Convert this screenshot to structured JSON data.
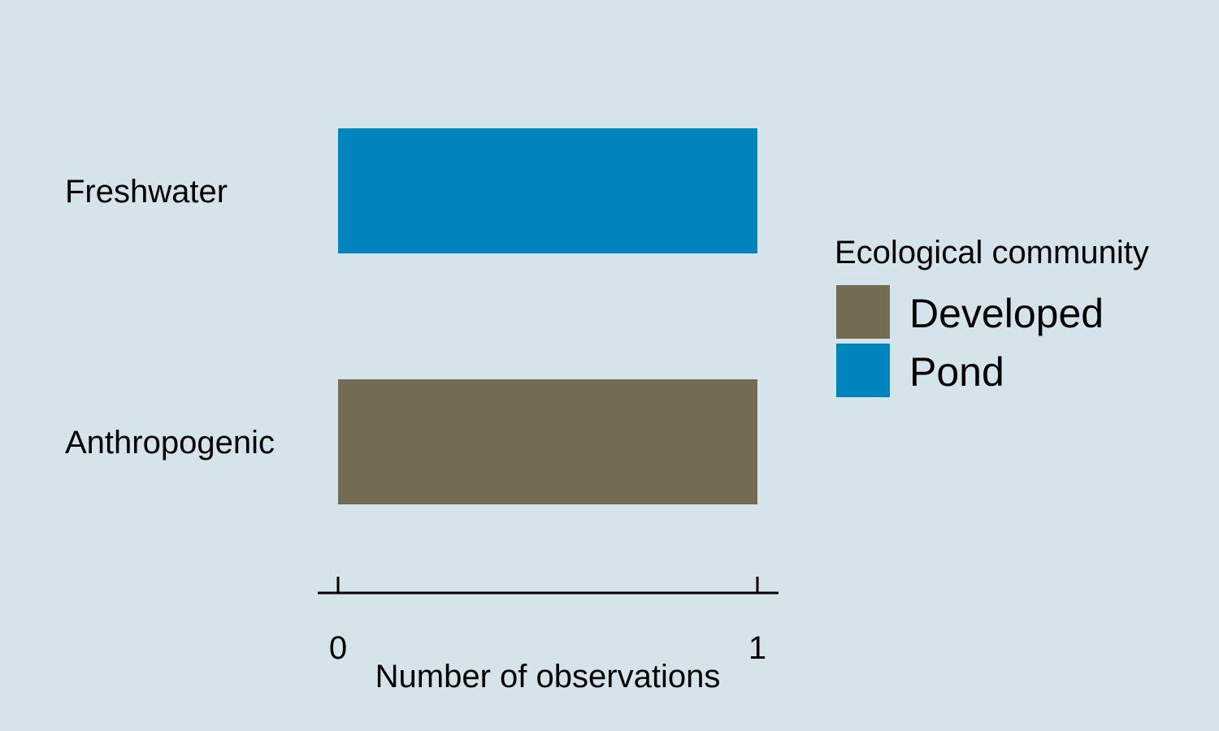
{
  "chart_data": {
    "type": "bar",
    "orientation": "horizontal",
    "categories": [
      "Anthropogenic",
      "Freshwater"
    ],
    "values": [
      1,
      1
    ],
    "bar_groups": [
      "Developed",
      "Pond"
    ],
    "xlabel": "Number of observations",
    "xlim": [
      0,
      1
    ],
    "xticks": [
      0,
      1
    ],
    "grid": false,
    "legend": {
      "title": "Ecological community",
      "position": "right",
      "items": [
        {
          "label": "Developed",
          "color": "#736b53"
        },
        {
          "label": "Pond",
          "color": "#0084bd"
        }
      ]
    }
  }
}
